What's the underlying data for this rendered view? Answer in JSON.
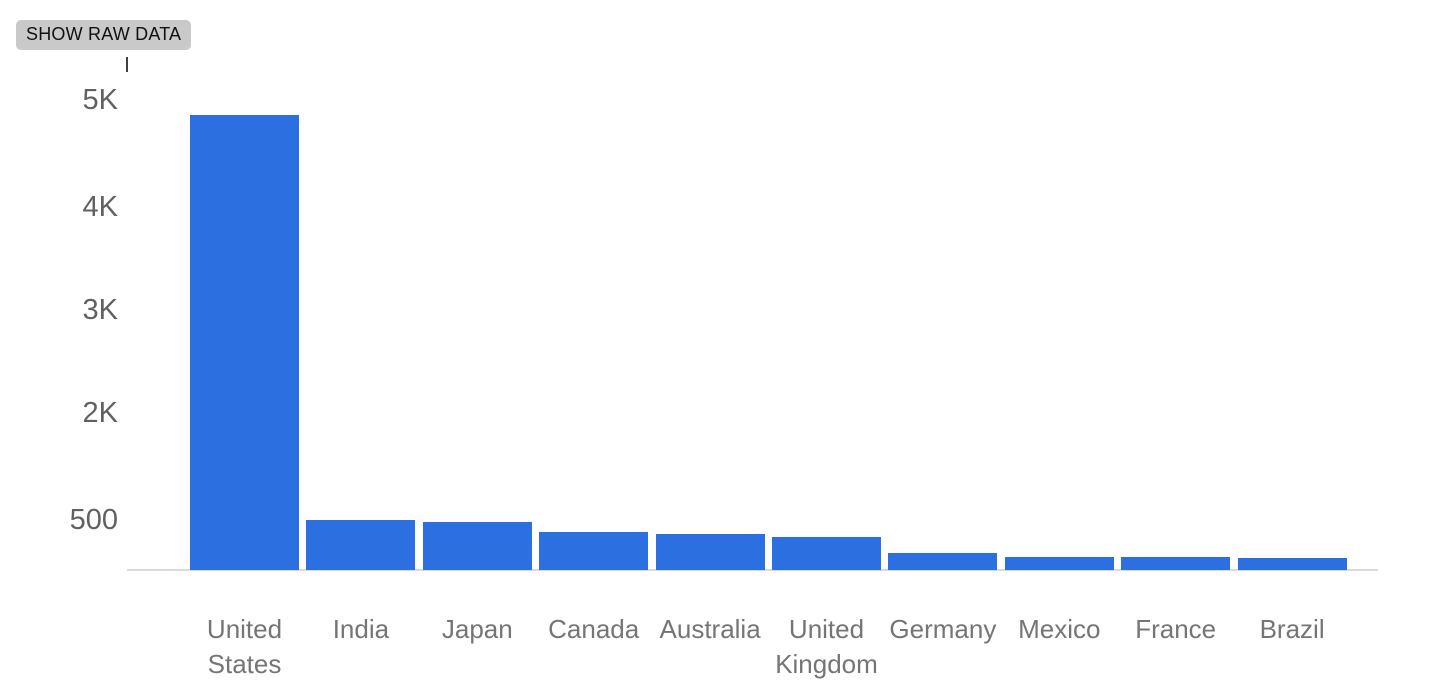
{
  "toolbar": {
    "show_raw_data_label": "SHOW RAW DATA"
  },
  "chart_data": {
    "type": "bar",
    "title": "",
    "xlabel": "",
    "ylabel": "",
    "categories": [
      "United States",
      "India",
      "Japan",
      "Canada",
      "Australia",
      "United Kingdom",
      "Germany",
      "Mexico",
      "France",
      "Brazil"
    ],
    "values": [
      4860,
      505,
      480,
      380,
      360,
      330,
      170,
      135,
      130,
      125
    ],
    "y_ticks": [
      {
        "label": "500",
        "value": 500
      },
      {
        "label": "2K",
        "value": 2000
      },
      {
        "label": "3K",
        "value": 3000
      },
      {
        "label": "4K",
        "value": 4000
      },
      {
        "label": "5K",
        "value": 5000
      }
    ],
    "ylim": [
      0,
      5200
    ],
    "grid": false,
    "legend": "none",
    "bar_color": "#2b6fe0",
    "axis_note": "y ticks evenly spaced: 500, 2K, 3K, 4K, 5K"
  }
}
